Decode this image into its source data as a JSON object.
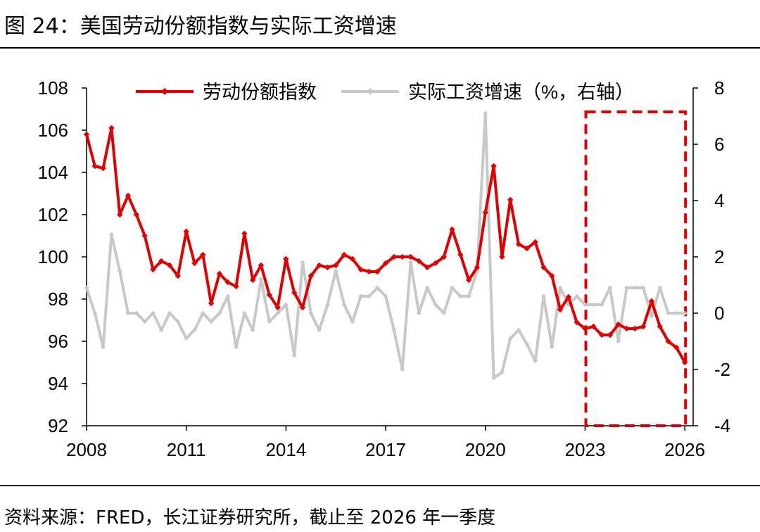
{
  "figure": {
    "title": "图 24：美国劳动份额指数与实际工资增速",
    "source": "资料来源：FRED，长江证券研究所，截止至 2026 年一季度"
  },
  "chart_data": {
    "type": "line",
    "legend": {
      "position": "top",
      "entries": [
        "劳动份额指数",
        "实际工资增速（%，右轴）"
      ]
    },
    "x_ticks": [
      "2008",
      "2011",
      "2014",
      "2017",
      "2020",
      "2023",
      "2026"
    ],
    "x_range": [
      2008.0,
      2026.25
    ],
    "y_left": {
      "ticks": [
        "108",
        "106",
        "104",
        "102",
        "100",
        "98",
        "96",
        "94",
        "92"
      ],
      "range": [
        92,
        108
      ]
    },
    "y_right": {
      "ticks": [
        "8",
        "6",
        "4",
        "2",
        "0",
        "-2",
        "-4"
      ],
      "range": [
        -4,
        8
      ]
    },
    "highlight_box": {
      "x_range": [
        2023.0,
        2026.0
      ],
      "color": "#e00000",
      "style": "dashed"
    },
    "series": [
      {
        "name": "劳动份额指数",
        "axis": "left",
        "color": "#e00000",
        "x": [
          2008.0,
          2008.25,
          2008.5,
          2008.75,
          2009.0,
          2009.25,
          2009.5,
          2009.75,
          2010.0,
          2010.25,
          2010.5,
          2010.75,
          2011.0,
          2011.25,
          2011.5,
          2011.75,
          2012.0,
          2012.25,
          2012.5,
          2012.75,
          2013.0,
          2013.25,
          2013.5,
          2013.75,
          2014.0,
          2014.25,
          2014.5,
          2014.75,
          2015.0,
          2015.25,
          2015.5,
          2015.75,
          2016.0,
          2016.25,
          2016.5,
          2016.75,
          2017.0,
          2017.25,
          2017.5,
          2017.75,
          2018.0,
          2018.25,
          2018.5,
          2018.75,
          2019.0,
          2019.25,
          2019.5,
          2019.75,
          2020.0,
          2020.25,
          2020.5,
          2020.75,
          2021.0,
          2021.25,
          2021.5,
          2021.75,
          2022.0,
          2022.25,
          2022.5,
          2022.75,
          2023.0,
          2023.25,
          2023.5,
          2023.75,
          2024.0,
          2024.25,
          2024.5,
          2024.75,
          2025.0,
          2025.25,
          2025.5,
          2025.75,
          2026.0
        ],
        "values": [
          105.8,
          104.3,
          104.2,
          106.1,
          102.0,
          102.9,
          102.0,
          101.0,
          99.4,
          99.8,
          99.6,
          99.1,
          101.2,
          99.7,
          100.1,
          97.8,
          99.2,
          98.8,
          98.6,
          101.1,
          98.9,
          99.6,
          98.2,
          97.6,
          99.9,
          98.3,
          97.6,
          99.1,
          99.6,
          99.5,
          99.6,
          100.1,
          99.9,
          99.4,
          99.3,
          99.3,
          99.7,
          100.0,
          100.0,
          100.0,
          99.8,
          99.5,
          99.7,
          100.0,
          101.3,
          100.1,
          98.9,
          99.5,
          102.1,
          104.3,
          100.0,
          102.7,
          100.6,
          100.4,
          100.7,
          99.5,
          99.1,
          97.5,
          98.1,
          96.9,
          96.6,
          96.7,
          96.3,
          96.3,
          96.8,
          96.6,
          96.6,
          96.7,
          97.9,
          96.7,
          96.0,
          95.7,
          95.0
        ]
      },
      {
        "name": "实际工资增速（%，右轴）",
        "axis": "right",
        "color": "#c8c8c8",
        "x": [
          2008.0,
          2008.25,
          2008.5,
          2008.75,
          2009.0,
          2009.25,
          2009.5,
          2009.75,
          2010.0,
          2010.25,
          2010.5,
          2010.75,
          2011.0,
          2011.25,
          2011.5,
          2011.75,
          2012.0,
          2012.25,
          2012.5,
          2012.75,
          2013.0,
          2013.25,
          2013.5,
          2013.75,
          2014.0,
          2014.25,
          2014.5,
          2014.75,
          2015.0,
          2015.25,
          2015.5,
          2015.75,
          2016.0,
          2016.25,
          2016.5,
          2016.75,
          2017.0,
          2017.25,
          2017.5,
          2017.75,
          2018.0,
          2018.25,
          2018.5,
          2018.75,
          2019.0,
          2019.25,
          2019.5,
          2019.75,
          2020.0,
          2020.25,
          2020.5,
          2020.75,
          2021.0,
          2021.25,
          2021.5,
          2021.75,
          2022.0,
          2022.25,
          2022.5,
          2022.75,
          2023.0,
          2023.25,
          2023.5,
          2023.75,
          2024.0,
          2024.25,
          2024.5,
          2024.75,
          2025.0,
          2025.25,
          2025.5,
          2025.75,
          2026.0
        ],
        "values": [
          0.9,
          0.0,
          -1.2,
          2.8,
          1.5,
          0.0,
          0.0,
          -0.3,
          0.0,
          -0.6,
          0.0,
          -0.3,
          -0.9,
          -0.6,
          0.0,
          -0.3,
          0.0,
          0.6,
          -1.2,
          0.0,
          -0.6,
          1.2,
          -0.3,
          0.0,
          0.3,
          -1.5,
          1.8,
          0.0,
          -0.6,
          0.3,
          1.5,
          0.3,
          -0.3,
          0.6,
          0.6,
          0.9,
          0.6,
          -0.6,
          -2.0,
          1.8,
          0.0,
          0.9,
          0.3,
          0.0,
          0.9,
          0.6,
          0.6,
          1.5,
          7.1,
          -2.3,
          -2.1,
          -0.9,
          -0.6,
          -1.1,
          -1.7,
          0.6,
          -1.2,
          0.9,
          0.3,
          0.6,
          0.3,
          0.3,
          0.3,
          0.9,
          -1.0,
          0.9,
          0.9,
          0.9,
          -0.1,
          0.9,
          0.0,
          0.0,
          0.0
        ]
      }
    ]
  }
}
